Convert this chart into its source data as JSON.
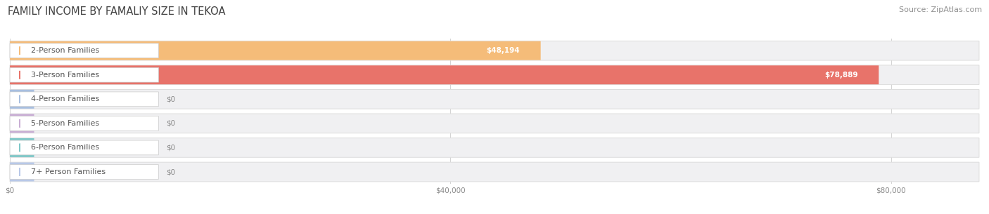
{
  "title": "FAMILY INCOME BY FAMALIY SIZE IN TEKOA",
  "source": "Source: ZipAtlas.com",
  "categories": [
    "2-Person Families",
    "3-Person Families",
    "4-Person Families",
    "5-Person Families",
    "6-Person Families",
    "7+ Person Families"
  ],
  "values": [
    48194,
    78889,
    0,
    0,
    0,
    0
  ],
  "bar_colors": [
    "#f5bc79",
    "#e8736a",
    "#a8bfe0",
    "#c9aed4",
    "#7ec8c8",
    "#b8c8e8"
  ],
  "value_labels": [
    "$48,194",
    "$78,889",
    "$0",
    "$0",
    "$0",
    "$0"
  ],
  "xlim_max": 88000,
  "xticks": [
    0,
    40000,
    80000
  ],
  "xticklabels": [
    "$0",
    "$40,000",
    "$80,000"
  ],
  "background_color": "#ffffff",
  "row_bg_color": "#f0f0f2",
  "row_border_color": "#dddddd",
  "title_color": "#404040",
  "source_color": "#909090",
  "title_fontsize": 10.5,
  "source_fontsize": 8,
  "label_fontsize": 8,
  "value_fontsize": 7.5,
  "tick_fontsize": 7.5
}
